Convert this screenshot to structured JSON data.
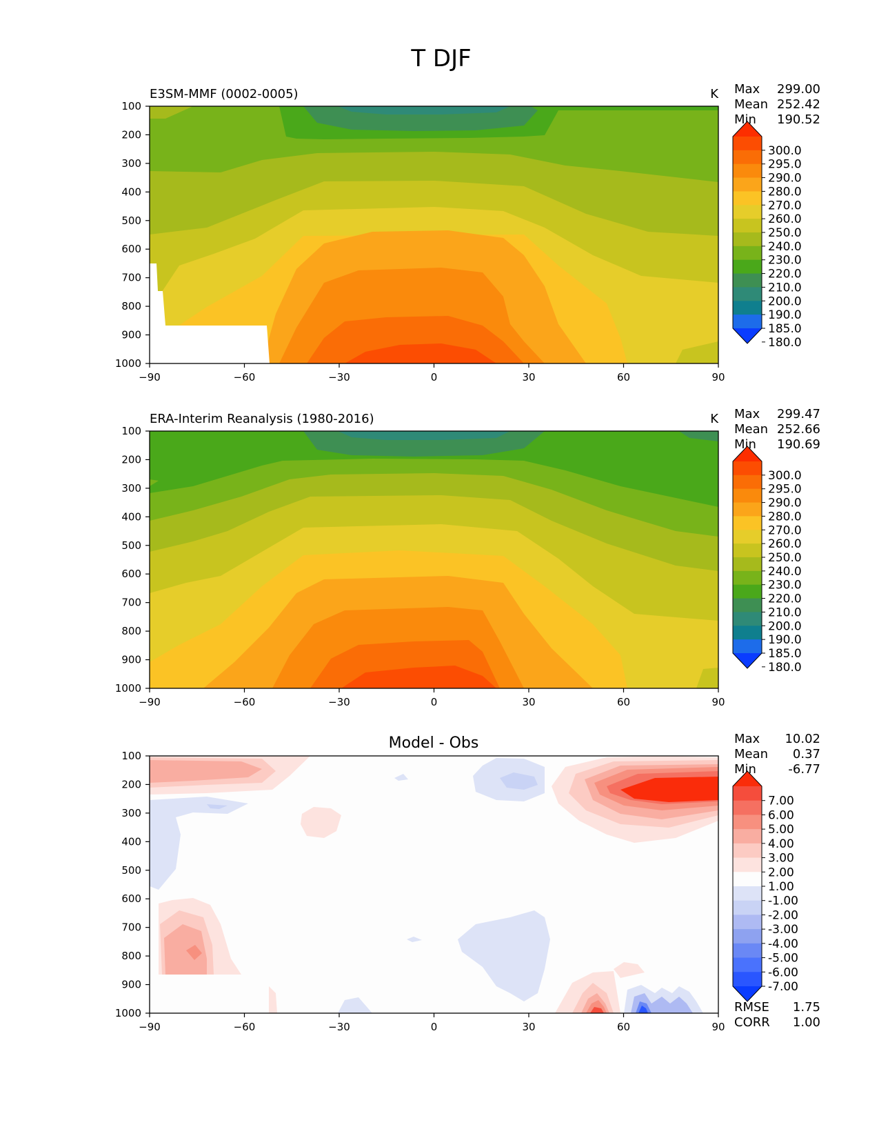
{
  "figure": {
    "title": "T DJF"
  },
  "colors": {
    "full_levels": [
      "#0a3cff",
      "#1d6cea",
      "#0f7f8e",
      "#2f8a77",
      "#3e8f53",
      "#4aa81a",
      "#78b31a",
      "#a6ba1c",
      "#c8c41f",
      "#e6cd2a",
      "#fbc325",
      "#fba51a",
      "#fa8a0c",
      "#fa6d06",
      "#fc4d02",
      "#fd2e00"
    ],
    "diff_levels": [
      "#0a3cff",
      "#2a56ff",
      "#4a72fd",
      "#6a88f5",
      "#8ea2f0",
      "#aebaf3",
      "#c9d3f5",
      "#dde3f7",
      "#fdfdfd",
      "#fde3df",
      "#fccbc3",
      "#f9ada1",
      "#f7907f",
      "#f57061",
      "#f54d3c",
      "#fa2c0a"
    ]
  },
  "chart_data": [
    {
      "type": "contour",
      "id": "test",
      "title": "E3SM-MMF (0002-0005)",
      "units": "K",
      "stats": {
        "max_label": "Max",
        "max": "299.00",
        "mean_label": "Mean",
        "mean": "252.42",
        "min_label": "Min",
        "min": "190.52"
      },
      "x_ticks": [
        -90,
        -60,
        -30,
        0,
        30,
        60,
        90
      ],
      "x_tick_labels": [
        "−90",
        "−60",
        "−30",
        "0",
        "30",
        "60",
        "90"
      ],
      "y_ticks": [
        100,
        200,
        300,
        400,
        500,
        600,
        700,
        800,
        900,
        1000
      ],
      "y_tick_labels": [
        "100",
        "200",
        "300",
        "400",
        "500",
        "600",
        "700",
        "800",
        "900",
        "1000"
      ],
      "xlim": [
        -90,
        90
      ],
      "ylim": [
        100,
        1000
      ],
      "colorbar_levels": [
        "300.0",
        "295.0",
        "290.0",
        "280.0",
        "270.0",
        "260.0",
        "250.0",
        "240.0",
        "230.0",
        "220.0",
        "210.0",
        "200.0",
        "190.0",
        "185.0",
        "180.0"
      ],
      "palette": "full",
      "missing_region": true
    },
    {
      "type": "contour",
      "id": "ref",
      "title": "ERA-Interim Reanalysis (1980-2016)",
      "units": "K",
      "stats": {
        "max_label": "Max",
        "max": "299.47",
        "mean_label": "Mean",
        "mean": "252.66",
        "min_label": "Min",
        "min": "190.69"
      },
      "x_ticks": [
        -90,
        -60,
        -30,
        0,
        30,
        60,
        90
      ],
      "x_tick_labels": [
        "−90",
        "−60",
        "−30",
        "0",
        "30",
        "60",
        "90"
      ],
      "y_ticks": [
        100,
        200,
        300,
        400,
        500,
        600,
        700,
        800,
        900,
        1000
      ],
      "y_tick_labels": [
        "100",
        "200",
        "300",
        "400",
        "500",
        "600",
        "700",
        "800",
        "900",
        "1000"
      ],
      "xlim": [
        -90,
        90
      ],
      "ylim": [
        100,
        1000
      ],
      "colorbar_levels": [
        "300.0",
        "295.0",
        "290.0",
        "280.0",
        "270.0",
        "260.0",
        "250.0",
        "240.0",
        "230.0",
        "220.0",
        "210.0",
        "200.0",
        "190.0",
        "185.0",
        "180.0"
      ],
      "palette": "full",
      "missing_region": false
    },
    {
      "type": "contour",
      "id": "diff",
      "center_title": "Model - Obs",
      "stats": {
        "max_label": "Max",
        "max": "10.02",
        "mean_label": "Mean",
        "mean": "0.37",
        "min_label": "Min",
        "min": "-6.77"
      },
      "extra_stats": {
        "rmse_label": "RMSE",
        "rmse": "1.75",
        "corr_label": "CORR",
        "corr": "1.00"
      },
      "x_ticks": [
        -90,
        -60,
        -30,
        0,
        30,
        60,
        90
      ],
      "x_tick_labels": [
        "−90",
        "−60",
        "−30",
        "0",
        "30",
        "60",
        "90"
      ],
      "y_ticks": [
        100,
        200,
        300,
        400,
        500,
        600,
        700,
        800,
        900,
        1000
      ],
      "y_tick_labels": [
        "100",
        "200",
        "300",
        "400",
        "500",
        "600",
        "700",
        "800",
        "900",
        "1000"
      ],
      "xlim": [
        -90,
        90
      ],
      "ylim": [
        100,
        1000
      ],
      "colorbar_levels": [
        "7.00",
        "6.00",
        "5.00",
        "4.00",
        "3.00",
        "2.00",
        "1.00",
        "-1.00",
        "-2.00",
        "-3.00",
        "-4.00",
        "-5.00",
        "-6.00",
        "-7.00"
      ],
      "palette": "diff"
    }
  ]
}
